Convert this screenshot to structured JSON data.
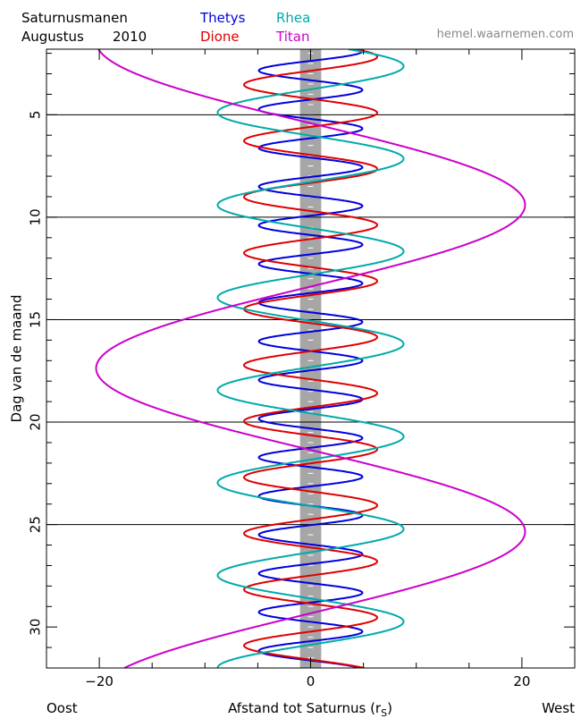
{
  "header": {
    "title_line1": "Saturnusmanen",
    "title_line2": "Augustus",
    "year": "2010",
    "site": "hemel.waarnemen.com"
  },
  "legend": [
    {
      "name": "Thetys",
      "color": "#0000e0"
    },
    {
      "name": "Dione",
      "color": "#e00000"
    },
    {
      "name": "Rhea",
      "color": "#00aaaa"
    },
    {
      "name": "Titan",
      "color": "#cc00cc"
    }
  ],
  "chart_data": {
    "type": "line",
    "title": "Saturnusmanen",
    "xlabel": "Afstand tot Saturnus (r",
    "xlabel_sub": "S",
    "xlabel_close": ")",
    "ylabel": "Dag van de maand",
    "xlim": [
      -25,
      25
    ],
    "ylim": [
      1.8,
      32.0
    ],
    "y_inverted": true,
    "x_ticks": [
      -20,
      0,
      20
    ],
    "x_tick_labels": [
      "−20",
      "0",
      "20"
    ],
    "y_ticks": [
      5,
      10,
      15,
      20,
      25,
      30
    ],
    "y_tick_labels": [
      "5",
      "10",
      "15",
      "20",
      "25",
      "30"
    ],
    "gridlines_at_days": [
      5,
      10,
      15,
      20,
      25
    ],
    "saturn_band_halfwidth": 1.0,
    "x_left_label": "Oost",
    "x_right_label": "West",
    "series": [
      {
        "name": "Thetys",
        "color": "#0000e0",
        "amplitude": 4.9,
        "period_days": 1.888,
        "phase_day": 1.9
      },
      {
        "name": "Dione",
        "color": "#e00000",
        "amplitude": 6.3,
        "period_days": 2.737,
        "phase_day": 2.17
      },
      {
        "name": "Rhea",
        "color": "#00aaaa",
        "amplitude": 8.8,
        "period_days": 4.518,
        "phase_day": 2.63
      },
      {
        "name": "Titan",
        "color": "#cc00cc",
        "amplitude": 20.3,
        "period_days": 15.945,
        "phase_day": 9.4
      }
    ]
  }
}
